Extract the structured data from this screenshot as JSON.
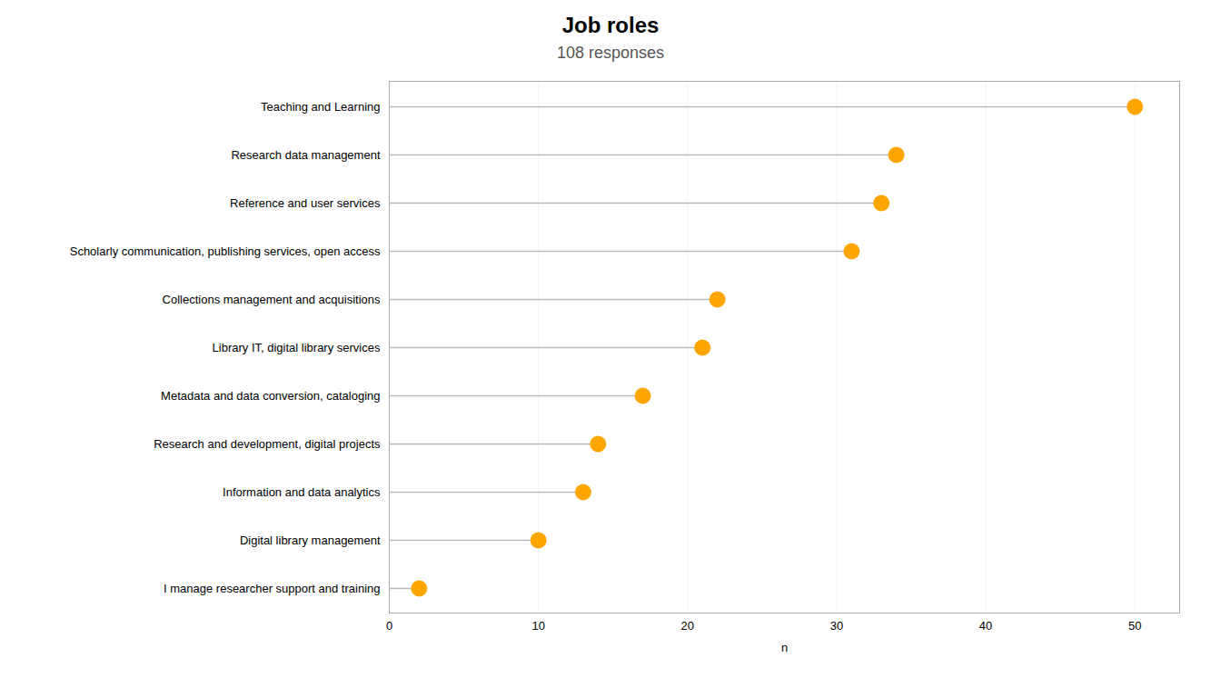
{
  "chart_data": {
    "type": "lollipop",
    "orientation": "horizontal",
    "title": "Job roles",
    "subtitle": "108 responses",
    "categories": [
      "Teaching and Learning",
      "Research data management",
      "Reference and user services",
      "Scholarly communication, publishing services, open access",
      "Collections management and acquisitions",
      "Library IT, digital library services",
      "Metadata and data conversion, cataloging",
      "Research and development, digital projects",
      "Information and data analytics",
      "Digital library management",
      "I manage researcher support and training"
    ],
    "values": [
      50,
      34,
      33,
      31,
      22,
      21,
      17,
      14,
      13,
      10,
      2
    ],
    "color": "#FFA500",
    "xlabel": "n",
    "xlim": [
      0,
      53
    ],
    "xticks": [
      0,
      10,
      20,
      30,
      40,
      50
    ],
    "grid": true
  }
}
